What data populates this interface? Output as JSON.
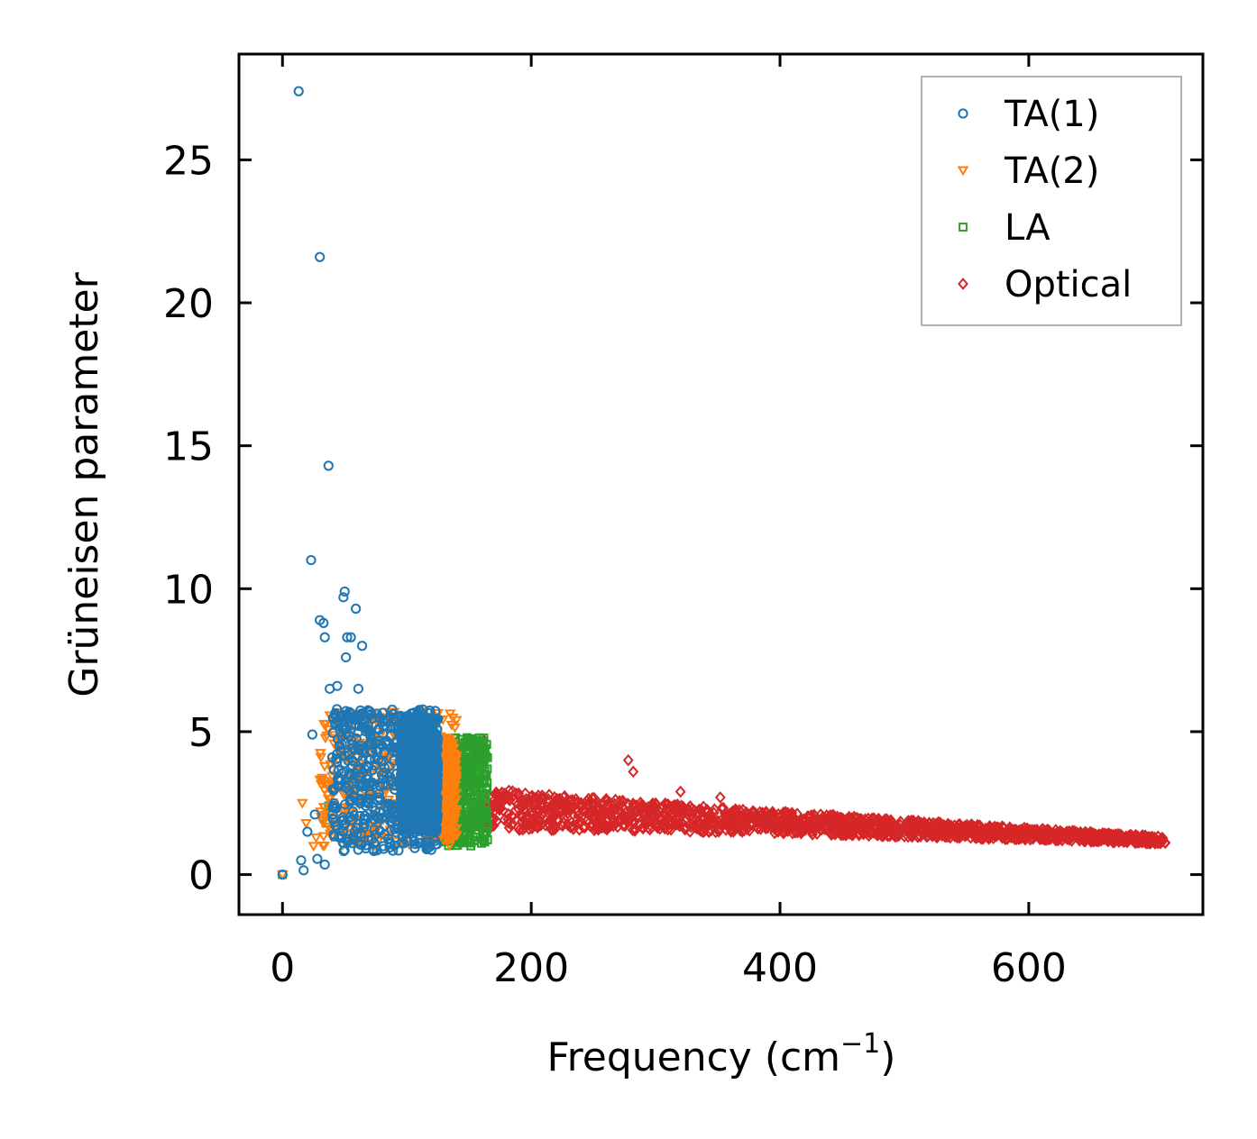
{
  "chart_data": {
    "type": "scatter",
    "title": "",
    "xlabel": "Frequency (cm",
    "xlabel_sup": "−1",
    "xlabel_close": ")",
    "ylabel": "Grüneisen parameter",
    "xlim": [
      -35,
      740
    ],
    "ylim": [
      -1.4,
      28.7
    ],
    "xticks": [
      0,
      200,
      400,
      600
    ],
    "xtick_labels": [
      "0",
      "200",
      "400",
      "600"
    ],
    "yticks": [
      0,
      5,
      10,
      15,
      20,
      25
    ],
    "ytick_labels": [
      "0",
      "5",
      "10",
      "15",
      "20",
      "25"
    ],
    "legend_position": "top-right",
    "series": [
      {
        "name": "TA(1)",
        "marker": "circle",
        "color": "#1f77b4",
        "clusters": [
          {
            "x_range": [
              40,
              125
            ],
            "y_range": [
              0.8,
              5.8
            ],
            "count": 520
          },
          {
            "x_range": [
              95,
              125
            ],
            "y_range": [
              1.5,
              5.5
            ],
            "count": 900
          }
        ],
        "points": [
          {
            "x": 0,
            "y": 0.0
          },
          {
            "x": 13,
            "y": 27.4
          },
          {
            "x": 30,
            "y": 21.6
          },
          {
            "x": 37,
            "y": 14.3
          },
          {
            "x": 23,
            "y": 11.0
          },
          {
            "x": 50,
            "y": 9.9
          },
          {
            "x": 49,
            "y": 9.7
          },
          {
            "x": 59,
            "y": 9.3
          },
          {
            "x": 30,
            "y": 8.9
          },
          {
            "x": 33,
            "y": 8.8
          },
          {
            "x": 34,
            "y": 8.3
          },
          {
            "x": 52,
            "y": 8.3
          },
          {
            "x": 55,
            "y": 8.3
          },
          {
            "x": 64,
            "y": 8.0
          },
          {
            "x": 51,
            "y": 7.6
          },
          {
            "x": 38,
            "y": 6.5
          },
          {
            "x": 44,
            "y": 6.6
          },
          {
            "x": 61,
            "y": 6.5
          },
          {
            "x": 24,
            "y": 4.9
          },
          {
            "x": 15,
            "y": 0.5
          },
          {
            "x": 17,
            "y": 0.15
          },
          {
            "x": 28,
            "y": 0.55
          },
          {
            "x": 34,
            "y": 0.35
          },
          {
            "x": 20,
            "y": 1.5
          },
          {
            "x": 26,
            "y": 2.1
          },
          {
            "x": 40,
            "y": 4.1
          }
        ]
      },
      {
        "name": "TA(2)",
        "marker": "triangle-down",
        "color": "#ff7f0e",
        "clusters": [
          {
            "x_range": [
              30,
              140
            ],
            "y_range": [
              1.0,
              5.7
            ],
            "count": 380
          },
          {
            "x_range": [
              120,
              140
            ],
            "y_range": [
              1.2,
              4.8
            ],
            "count": 300
          }
        ],
        "points": [
          {
            "x": 0,
            "y": 0.0
          },
          {
            "x": 16,
            "y": 2.5
          },
          {
            "x": 19,
            "y": 1.8
          },
          {
            "x": 25,
            "y": 1.0
          },
          {
            "x": 27,
            "y": 1.3
          },
          {
            "x": 45,
            "y": 3.1
          },
          {
            "x": 114,
            "y": 5.7
          }
        ]
      },
      {
        "name": "LA",
        "marker": "square",
        "color": "#2ca02c",
        "clusters": [
          {
            "x_range": [
              130,
              165
            ],
            "y_range": [
              1.0,
              4.8
            ],
            "count": 420
          }
        ],
        "points": [
          {
            "x": 0,
            "y": 0.0
          },
          {
            "x": 35,
            "y": 1.8
          },
          {
            "x": 37,
            "y": 2.4
          },
          {
            "x": 53,
            "y": 3.0
          },
          {
            "x": 150,
            "y": 4.6
          }
        ]
      },
      {
        "name": "Optical",
        "marker": "diamond",
        "color": "#d62728",
        "clusters": [
          {
            "x_range": [
              158,
              710
            ],
            "y_center_start": 2.3,
            "y_center_end": 1.2,
            "spread_start": 1.6,
            "spread_end": 0.25,
            "count": 1600
          }
        ],
        "points": [
          {
            "x": 162,
            "y": 4.7
          },
          {
            "x": 278,
            "y": 4.0
          },
          {
            "x": 282,
            "y": 3.6
          },
          {
            "x": 320,
            "y": 2.9
          },
          {
            "x": 352,
            "y": 2.7
          },
          {
            "x": 707,
            "y": 1.2
          }
        ]
      }
    ]
  }
}
